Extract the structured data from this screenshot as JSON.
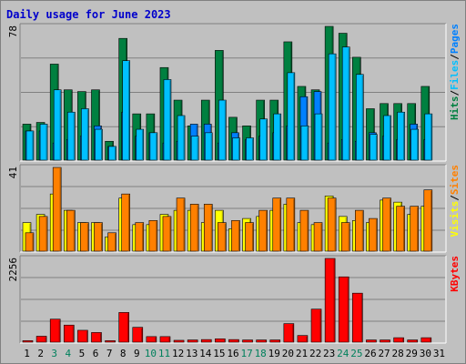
{
  "title": "Daily usage for June 2023",
  "colors": {
    "background": "#c0c0c0",
    "plot_bg": "#c0c0c0",
    "gridline": "#808080",
    "hits": "#008040",
    "files": "#00c0ff",
    "pages": "#0080ff",
    "visits": "#ffff00",
    "sites": "#ff8000",
    "kbytes": "#ff0000",
    "weekday_label": "#000000",
    "weekend_label": "#00805c",
    "title": "#0000cc"
  },
  "chart_data": [
    {
      "type": "bar",
      "panel": "hits-files-pages",
      "y_max_label": "78",
      "ylim": [
        0,
        78
      ],
      "legend": [
        {
          "text": "Hits",
          "color": "#008040"
        },
        {
          "text": "/",
          "color": "#000000"
        },
        {
          "text": "Files",
          "color": "#00c0ff"
        },
        {
          "text": "/",
          "color": "#000000"
        },
        {
          "text": "Pages",
          "color": "#0080ff"
        }
      ],
      "categories": [
        "1",
        "2",
        "3",
        "4",
        "5",
        "6",
        "7",
        "8",
        "9",
        "10",
        "11",
        "12",
        "13",
        "14",
        "15",
        "16",
        "17",
        "18",
        "19",
        "20",
        "21",
        "22",
        "23",
        "24",
        "25",
        "26",
        "27",
        "28",
        "29",
        "30",
        "31"
      ],
      "series": [
        {
          "name": "Hits",
          "values": [
            21,
            22,
            56,
            41,
            40,
            41,
            11,
            71,
            27,
            27,
            54,
            35,
            20,
            35,
            64,
            25,
            20,
            35,
            35,
            69,
            43,
            41,
            78,
            74,
            60,
            30,
            33,
            33,
            33,
            43,
            0
          ]
        },
        {
          "name": "Files",
          "values": [
            17,
            21,
            41,
            28,
            30,
            18,
            8,
            58,
            18,
            16,
            47,
            26,
            14,
            16,
            35,
            13,
            13,
            24,
            27,
            51,
            20,
            27,
            62,
            66,
            50,
            15,
            26,
            28,
            18,
            27,
            0
          ]
        },
        {
          "name": "Pages",
          "values": [
            17,
            17,
            10,
            12,
            14,
            20,
            8,
            28,
            14,
            16,
            10,
            11,
            21,
            21,
            10,
            16,
            12,
            14,
            16,
            20,
            37,
            40,
            10,
            12,
            11,
            16,
            14,
            12,
            21,
            12,
            0
          ]
        }
      ]
    },
    {
      "type": "bar",
      "panel": "visits-sites",
      "y_max_label": "41",
      "ylim": [
        0,
        41
      ],
      "legend": [
        {
          "text": "Visits",
          "color": "#ffff00"
        },
        {
          "text": "/",
          "color": "#000000"
        },
        {
          "text": "Sites",
          "color": "#ff8000"
        }
      ],
      "categories": [
        "1",
        "2",
        "3",
        "4",
        "5",
        "6",
        "7",
        "8",
        "9",
        "10",
        "11",
        "12",
        "13",
        "14",
        "15",
        "16",
        "17",
        "18",
        "19",
        "20",
        "21",
        "22",
        "23",
        "24",
        "25",
        "26",
        "27",
        "28",
        "29",
        "30",
        "31"
      ],
      "series": [
        {
          "name": "Visits",
          "values": [
            14,
            18,
            28,
            20,
            14,
            14,
            7,
            26,
            13,
            13,
            18,
            20,
            20,
            14,
            20,
            11,
            16,
            17,
            20,
            23,
            14,
            13,
            27,
            17,
            15,
            14,
            25,
            24,
            18,
            22,
            0
          ]
        },
        {
          "name": "Sites",
          "values": [
            9,
            17,
            41,
            20,
            14,
            14,
            9,
            28,
            14,
            15,
            17,
            26,
            23,
            23,
            14,
            15,
            14,
            20,
            26,
            26,
            20,
            14,
            26,
            14,
            20,
            16,
            26,
            22,
            22,
            30,
            0
          ]
        }
      ]
    },
    {
      "type": "bar",
      "panel": "kbytes",
      "y_max_label": "2256",
      "ylim": [
        0,
        2256
      ],
      "legend": [
        {
          "text": "KBytes",
          "color": "#ff0000"
        }
      ],
      "categories": [
        "1",
        "2",
        "3",
        "4",
        "5",
        "6",
        "7",
        "8",
        "9",
        "10",
        "11",
        "12",
        "13",
        "14",
        "15",
        "16",
        "17",
        "18",
        "19",
        "20",
        "21",
        "22",
        "23",
        "24",
        "25",
        "26",
        "27",
        "28",
        "29",
        "30",
        "31"
      ],
      "series": [
        {
          "name": "KBytes",
          "values": [
            40,
            160,
            620,
            460,
            320,
            260,
            40,
            800,
            400,
            150,
            150,
            50,
            60,
            70,
            90,
            70,
            60,
            60,
            60,
            500,
            180,
            890,
            2256,
            1760,
            1320,
            60,
            60,
            120,
            60,
            120,
            0
          ]
        }
      ]
    }
  ],
  "x_labels": [
    {
      "text": "1",
      "weekend": false
    },
    {
      "text": "2",
      "weekend": false
    },
    {
      "text": "3",
      "weekend": true
    },
    {
      "text": "4",
      "weekend": true
    },
    {
      "text": "5",
      "weekend": false
    },
    {
      "text": "6",
      "weekend": false
    },
    {
      "text": "7",
      "weekend": false
    },
    {
      "text": "8",
      "weekend": false
    },
    {
      "text": "9",
      "weekend": false
    },
    {
      "text": "10",
      "weekend": true
    },
    {
      "text": "11",
      "weekend": true
    },
    {
      "text": "12",
      "weekend": false
    },
    {
      "text": "13",
      "weekend": false
    },
    {
      "text": "14",
      "weekend": false
    },
    {
      "text": "15",
      "weekend": false
    },
    {
      "text": "16",
      "weekend": false
    },
    {
      "text": "17",
      "weekend": true
    },
    {
      "text": "18",
      "weekend": true
    },
    {
      "text": "19",
      "weekend": false
    },
    {
      "text": "20",
      "weekend": false
    },
    {
      "text": "21",
      "weekend": false
    },
    {
      "text": "22",
      "weekend": false
    },
    {
      "text": "23",
      "weekend": false
    },
    {
      "text": "24",
      "weekend": true
    },
    {
      "text": "25",
      "weekend": true
    },
    {
      "text": "26",
      "weekend": false
    },
    {
      "text": "27",
      "weekend": false
    },
    {
      "text": "28",
      "weekend": false
    },
    {
      "text": "29",
      "weekend": false
    },
    {
      "text": "30",
      "weekend": false
    },
    {
      "text": "31",
      "weekend": false
    }
  ]
}
